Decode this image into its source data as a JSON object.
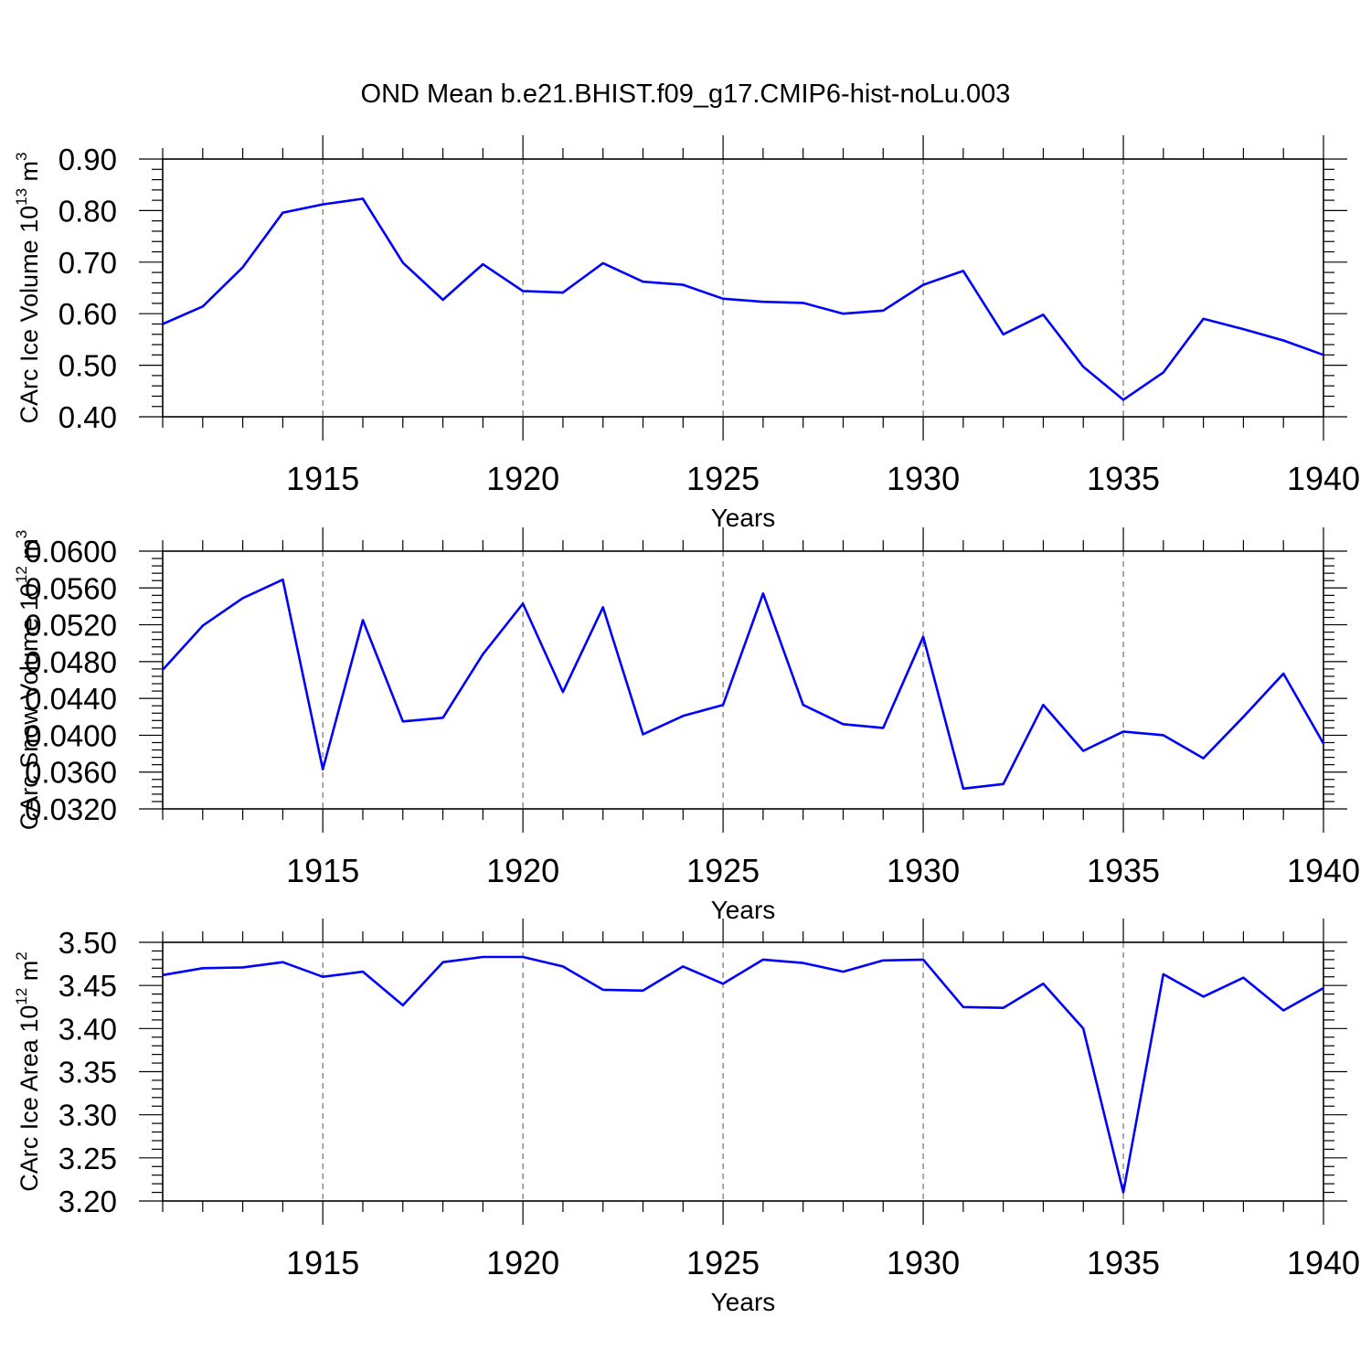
{
  "title": "OND Mean b.e21.BHIST.f09_g17.CMIP6-hist-noLu.003",
  "chart_data": [
    {
      "type": "line",
      "title": "OND Mean b.e21.BHIST.f09_g17.CMIP6-hist-noLu.003",
      "xlabel": "Years",
      "ylabel_main": "CArc Ice Volume 10",
      "ylabel_exp": "13",
      "ylabel_unit": " m",
      "ylabel_unit_exp": "3",
      "xlim": [
        1911,
        1940
      ],
      "ylim": [
        0.4,
        0.9
      ],
      "yticks": [
        "0.90",
        "0.80",
        "0.70",
        "0.60",
        "0.50",
        "0.40"
      ],
      "ytick_values": [
        0.9,
        0.8,
        0.7,
        0.6,
        0.5,
        0.4
      ],
      "xticks": [
        "1915",
        "1920",
        "1925",
        "1930",
        "1935",
        "1940"
      ],
      "xtick_values": [
        1915,
        1920,
        1925,
        1930,
        1935,
        1940
      ],
      "grid": "vertical dashed at major x ticks",
      "series": [
        {
          "name": "CArc Ice Volume",
          "color": "#0000ff",
          "x": [
            1911,
            1912,
            1913,
            1914,
            1915,
            1916,
            1917,
            1918,
            1919,
            1920,
            1921,
            1922,
            1923,
            1924,
            1925,
            1926,
            1927,
            1928,
            1929,
            1930,
            1931,
            1932,
            1933,
            1934,
            1935,
            1936,
            1937,
            1938,
            1939,
            1940
          ],
          "values": [
            0.58,
            0.614,
            0.69,
            0.796,
            0.812,
            0.823,
            0.699,
            0.627,
            0.696,
            0.644,
            0.641,
            0.698,
            0.662,
            0.656,
            0.629,
            0.623,
            0.621,
            0.6,
            0.606,
            0.656,
            0.683,
            0.56,
            0.598,
            0.497,
            0.433,
            0.486,
            0.59,
            0.57,
            0.548,
            0.52
          ]
        }
      ]
    },
    {
      "type": "line",
      "xlabel": "Years",
      "ylabel_main": "CArc Snow Volume 10",
      "ylabel_exp": "12",
      "ylabel_unit": " m",
      "ylabel_unit_exp": "3",
      "xlim": [
        1911,
        1940
      ],
      "ylim": [
        0.032,
        0.06
      ],
      "yticks": [
        "0.0600",
        "0.0560",
        "0.0520",
        "0.0480",
        "0.0440",
        "0.0400",
        "0.0360",
        "0.0320"
      ],
      "ytick_values": [
        0.06,
        0.056,
        0.052,
        0.048,
        0.044,
        0.04,
        0.036,
        0.032
      ],
      "xticks": [
        "1915",
        "1920",
        "1925",
        "1930",
        "1935",
        "1940"
      ],
      "xtick_values": [
        1915,
        1920,
        1925,
        1930,
        1935,
        1940
      ],
      "grid": "vertical dashed at major x ticks",
      "series": [
        {
          "name": "CArc Snow Volume",
          "color": "#0000ff",
          "x": [
            1911,
            1912,
            1913,
            1914,
            1915,
            1916,
            1917,
            1918,
            1919,
            1920,
            1921,
            1922,
            1923,
            1924,
            1925,
            1926,
            1927,
            1928,
            1929,
            1930,
            1931,
            1932,
            1933,
            1934,
            1935,
            1936,
            1937,
            1938,
            1939,
            1940
          ],
          "values": [
            0.0471,
            0.0519,
            0.0549,
            0.0569,
            0.0363,
            0.0525,
            0.0415,
            0.0419,
            0.0488,
            0.0543,
            0.0447,
            0.0539,
            0.0401,
            0.0421,
            0.0433,
            0.0554,
            0.0433,
            0.0412,
            0.0408,
            0.0507,
            0.0342,
            0.0347,
            0.0433,
            0.0383,
            0.0404,
            0.04,
            0.0375,
            0.042,
            0.0467,
            0.0391
          ]
        }
      ]
    },
    {
      "type": "line",
      "xlabel": "Years",
      "ylabel_main": "CArc Ice Area 10",
      "ylabel_exp": "12",
      "ylabel_unit": " m",
      "ylabel_unit_exp": "2",
      "xlim": [
        1911,
        1940
      ],
      "ylim": [
        3.2,
        3.5
      ],
      "yticks": [
        "3.50",
        "3.45",
        "3.40",
        "3.35",
        "3.30",
        "3.25",
        "3.20"
      ],
      "ytick_values": [
        3.5,
        3.45,
        3.4,
        3.35,
        3.3,
        3.25,
        3.2
      ],
      "xticks": [
        "1915",
        "1920",
        "1925",
        "1930",
        "1935",
        "1940"
      ],
      "xtick_values": [
        1915,
        1920,
        1925,
        1930,
        1935,
        1940
      ],
      "grid": "vertical dashed at major x ticks",
      "series": [
        {
          "name": "CArc Ice Area",
          "color": "#0000ff",
          "x": [
            1911,
            1912,
            1913,
            1914,
            1915,
            1916,
            1917,
            1918,
            1919,
            1920,
            1921,
            1922,
            1923,
            1924,
            1925,
            1926,
            1927,
            1928,
            1929,
            1930,
            1931,
            1932,
            1933,
            1934,
            1935,
            1936,
            1937,
            1938,
            1939,
            1940
          ],
          "values": [
            3.462,
            3.47,
            3.471,
            3.477,
            3.46,
            3.466,
            3.427,
            3.477,
            3.483,
            3.483,
            3.472,
            3.445,
            3.444,
            3.472,
            3.452,
            3.48,
            3.476,
            3.466,
            3.479,
            3.48,
            3.425,
            3.424,
            3.452,
            3.4,
            3.21,
            3.463,
            3.437,
            3.459,
            3.421,
            3.447
          ]
        }
      ]
    }
  ]
}
